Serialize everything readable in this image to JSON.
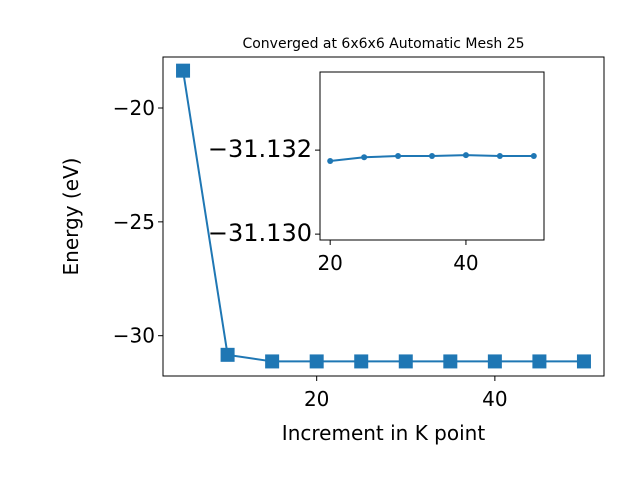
{
  "chart_data": [
    {
      "type": "line",
      "title": "Converged at 6x6x6 Automatic Mesh 25",
      "x_label": "Increment in K point",
      "y_label": "Energy (eV)",
      "x": [
        5,
        10,
        15,
        20,
        25,
        30,
        35,
        40,
        45,
        50
      ],
      "series": [
        {
          "color": "#1f77b4",
          "marker": "square",
          "values": [
            -18.36,
            -30.84,
            -31.13,
            -31.13,
            -31.13,
            -31.13,
            -31.13,
            -31.13,
            -31.13,
            -31.13
          ]
        }
      ],
      "xlim": [
        2.75,
        52.25
      ],
      "ylim": [
        -31.77,
        -17.76
      ],
      "xticks": [
        20,
        40
      ],
      "yticks": [
        {
          "value": -30,
          "label": "−30"
        },
        {
          "value": -25,
          "label": "−25"
        },
        {
          "value": -20,
          "label": "−20"
        }
      ]
    },
    {
      "type": "line",
      "x": [
        20,
        25,
        30,
        35,
        40,
        45,
        50
      ],
      "series": [
        {
          "color": "#1f77b4",
          "marker": "circle",
          "values": [
            -31.13174,
            -31.13183,
            -31.13186,
            -31.13186,
            -31.13188,
            -31.13186,
            -31.13186
          ]
        }
      ],
      "xlim": [
        18.5,
        51.5
      ],
      "ylim": [
        -31.12986,
        -31.13386
      ],
      "xticks": [
        20,
        40
      ],
      "yticks": [
        {
          "value": -31.13,
          "label": "−31.130"
        },
        {
          "value": -31.132,
          "label": "−31.132"
        }
      ]
    }
  ]
}
